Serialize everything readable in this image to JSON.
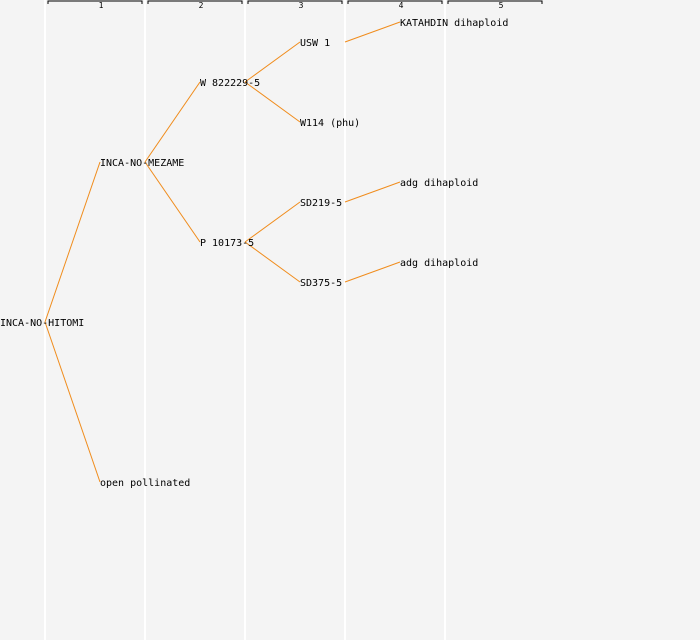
{
  "generations": [
    "1",
    "2",
    "3",
    "4",
    "5"
  ],
  "nodes": {
    "root": {
      "label": "INCA-NO-HITOMI"
    },
    "g1_top": {
      "label": "INCA-NO-MEZAME"
    },
    "g1_bot": {
      "label": "open pollinated"
    },
    "g2_top": {
      "label": "W 822229-5"
    },
    "g2_bot": {
      "label": "P 10173-5"
    },
    "g3_a": {
      "label": "USW 1"
    },
    "g3_b": {
      "label": "W114 (phu)"
    },
    "g3_c": {
      "label": "SD219-5"
    },
    "g3_d": {
      "label": "SD375-5"
    },
    "g4_a": {
      "label": "KATAHDIN dihaploid"
    },
    "g4_c": {
      "label": "adg dihaploid"
    },
    "g4_d": {
      "label": "adg dihaploid"
    }
  },
  "colors": {
    "edge": "#f08c1c",
    "background": "#f4f4f4",
    "column_line": "#ffffff"
  }
}
